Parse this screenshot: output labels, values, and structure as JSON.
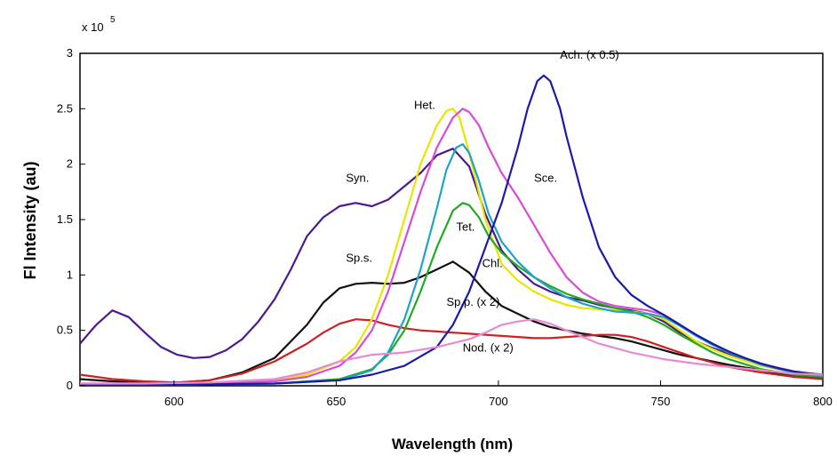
{
  "chart_data": {
    "type": "line",
    "xlabel": "Wavelength (nm)",
    "ylabel": "Fl Intensity (au)",
    "y_multiplier": "x 10",
    "y_exponent": "5",
    "xlim": [
      571,
      800
    ],
    "ylim": [
      0,
      3
    ],
    "x_ticks": [
      600,
      650,
      700,
      750,
      800
    ],
    "x_tick_labels": [
      "600",
      "650",
      "700",
      "750",
      "800"
    ],
    "y_ticks": [
      0,
      0.5,
      1,
      1.5,
      2,
      2.5,
      3
    ],
    "y_tick_labels": [
      "0",
      "0.5",
      "1",
      "1.5",
      "2",
      "2.5",
      "3"
    ],
    "grid": false,
    "series": [
      {
        "name": "Syn.",
        "color": "#4b1a8c",
        "x": [
          571,
          576,
          581,
          586,
          591,
          596,
          601,
          606,
          611,
          616,
          621,
          626,
          631,
          636,
          641,
          646,
          651,
          656,
          661,
          666,
          671,
          676,
          681,
          686,
          691,
          696,
          701,
          706,
          711,
          716,
          721,
          726,
          731,
          736,
          741,
          746,
          751,
          756,
          761,
          766,
          771,
          776,
          781,
          786,
          791,
          796,
          800
        ],
        "y": [
          0.38,
          0.55,
          0.68,
          0.62,
          0.48,
          0.35,
          0.28,
          0.25,
          0.26,
          0.32,
          0.42,
          0.58,
          0.78,
          1.05,
          1.35,
          1.52,
          1.62,
          1.65,
          1.62,
          1.68,
          1.8,
          1.92,
          2.08,
          2.14,
          1.98,
          1.55,
          1.22,
          1.05,
          0.92,
          0.85,
          0.8,
          0.77,
          0.73,
          0.7,
          0.68,
          0.65,
          0.58,
          0.48,
          0.4,
          0.34,
          0.29,
          0.24,
          0.2,
          0.16,
          0.13,
          0.11,
          0.1
        ]
      },
      {
        "name": "Sp.s.",
        "color": "#111111",
        "x": [
          571,
          581,
          591,
          601,
          611,
          621,
          631,
          641,
          646,
          651,
          656,
          661,
          666,
          671,
          676,
          681,
          686,
          691,
          696,
          701,
          706,
          711,
          716,
          721,
          726,
          731,
          736,
          741,
          746,
          751,
          756,
          761,
          766,
          771,
          781,
          791,
          800
        ],
        "y": [
          0.06,
          0.04,
          0.03,
          0.03,
          0.05,
          0.12,
          0.25,
          0.55,
          0.75,
          0.88,
          0.92,
          0.93,
          0.92,
          0.93,
          0.98,
          1.05,
          1.12,
          1.02,
          0.85,
          0.72,
          0.65,
          0.58,
          0.53,
          0.5,
          0.47,
          0.45,
          0.43,
          0.4,
          0.36,
          0.32,
          0.28,
          0.25,
          0.22,
          0.19,
          0.14,
          0.09,
          0.07
        ]
      },
      {
        "name": "Sp.p. (x 2)",
        "color": "#cc2222",
        "x": [
          571,
          581,
          591,
          601,
          611,
          621,
          631,
          641,
          646,
          651,
          656,
          661,
          666,
          671,
          676,
          681,
          686,
          691,
          696,
          701,
          706,
          711,
          716,
          721,
          726,
          731,
          736,
          741,
          746,
          751,
          756,
          761,
          766,
          771,
          781,
          791,
          800
        ],
        "y": [
          0.1,
          0.06,
          0.04,
          0.03,
          0.05,
          0.11,
          0.22,
          0.38,
          0.48,
          0.56,
          0.6,
          0.59,
          0.55,
          0.52,
          0.5,
          0.49,
          0.48,
          0.47,
          0.46,
          0.45,
          0.44,
          0.43,
          0.43,
          0.44,
          0.45,
          0.46,
          0.46,
          0.44,
          0.4,
          0.35,
          0.3,
          0.25,
          0.21,
          0.17,
          0.12,
          0.08,
          0.06
        ]
      },
      {
        "name": "Het.",
        "color": "#e6e600",
        "x": [
          571,
          591,
          611,
          631,
          641,
          651,
          656,
          661,
          666,
          671,
          676,
          681,
          684,
          686,
          688,
          691,
          696,
          701,
          706,
          711,
          716,
          721,
          726,
          731,
          736,
          741,
          746,
          751,
          756,
          761,
          766,
          771,
          781,
          791,
          800
        ],
        "y": [
          0.02,
          0.02,
          0.02,
          0.05,
          0.1,
          0.22,
          0.35,
          0.6,
          1.0,
          1.5,
          2.0,
          2.35,
          2.48,
          2.5,
          2.42,
          2.1,
          1.5,
          1.1,
          0.95,
          0.85,
          0.78,
          0.73,
          0.7,
          0.69,
          0.68,
          0.67,
          0.65,
          0.6,
          0.5,
          0.4,
          0.33,
          0.27,
          0.18,
          0.12,
          0.09
        ]
      },
      {
        "name": "",
        "color": "#d94ad9",
        "x": [
          571,
          591,
          611,
          631,
          641,
          651,
          656,
          661,
          666,
          671,
          676,
          681,
          686,
          689,
          691,
          694,
          697,
          701,
          706,
          711,
          716,
          721,
          726,
          731,
          736,
          741,
          746,
          751,
          756,
          761,
          766,
          771,
          781,
          791,
          800
        ],
        "y": [
          0.02,
          0.02,
          0.02,
          0.04,
          0.08,
          0.18,
          0.3,
          0.5,
          0.85,
          1.3,
          1.75,
          2.15,
          2.42,
          2.5,
          2.47,
          2.35,
          2.15,
          1.92,
          1.7,
          1.45,
          1.2,
          0.98,
          0.84,
          0.76,
          0.72,
          0.7,
          0.68,
          0.64,
          0.55,
          0.46,
          0.38,
          0.3,
          0.2,
          0.13,
          0.1
        ]
      },
      {
        "name": "Tet.",
        "color": "#22aa22",
        "x": [
          571,
          601,
          631,
          651,
          661,
          666,
          671,
          676,
          681,
          686,
          689,
          691,
          694,
          697,
          701,
          706,
          711,
          716,
          721,
          726,
          731,
          736,
          741,
          746,
          751,
          756,
          761,
          766,
          771,
          781,
          791,
          800
        ],
        "y": [
          0.01,
          0.01,
          0.02,
          0.06,
          0.15,
          0.28,
          0.5,
          0.85,
          1.25,
          1.58,
          1.65,
          1.63,
          1.52,
          1.35,
          1.2,
          1.08,
          0.98,
          0.9,
          0.83,
          0.78,
          0.74,
          0.7,
          0.67,
          0.62,
          0.55,
          0.46,
          0.38,
          0.3,
          0.24,
          0.15,
          0.1,
          0.08
        ]
      },
      {
        "name": "Chl.",
        "color": "#1fa3c4",
        "x": [
          571,
          601,
          631,
          651,
          661,
          666,
          671,
          676,
          681,
          684,
          687,
          689,
          691,
          694,
          697,
          701,
          706,
          711,
          716,
          721,
          726,
          731,
          736,
          741,
          746,
          751,
          756,
          761,
          766,
          771,
          781,
          791,
          800
        ],
        "y": [
          0.01,
          0.01,
          0.02,
          0.05,
          0.14,
          0.3,
          0.6,
          1.05,
          1.6,
          1.95,
          2.15,
          2.18,
          2.1,
          1.85,
          1.55,
          1.3,
          1.12,
          0.98,
          0.88,
          0.8,
          0.74,
          0.7,
          0.67,
          0.66,
          0.65,
          0.62,
          0.54,
          0.45,
          0.37,
          0.3,
          0.19,
          0.12,
          0.09
        ]
      },
      {
        "name": "Ach. (x 0.5)",
        "color": "#1a1aa8",
        "x": [
          571,
          601,
          631,
          651,
          661,
          671,
          681,
          686,
          691,
          696,
          701,
          706,
          709,
          712,
          714,
          716,
          719,
          721,
          726,
          731,
          736,
          741,
          746,
          751,
          756,
          761,
          766,
          771,
          776,
          781,
          786,
          791,
          796,
          800
        ],
        "y": [
          0.01,
          0.01,
          0.02,
          0.05,
          0.1,
          0.18,
          0.35,
          0.55,
          0.85,
          1.25,
          1.65,
          2.15,
          2.5,
          2.75,
          2.8,
          2.75,
          2.5,
          2.25,
          1.7,
          1.25,
          0.98,
          0.82,
          0.72,
          0.64,
          0.55,
          0.46,
          0.38,
          0.31,
          0.25,
          0.2,
          0.16,
          0.13,
          0.11,
          0.1
        ]
      },
      {
        "name": "Nod. (x 2)",
        "color": "#e68ad1",
        "x": [
          571,
          591,
          611,
          631,
          641,
          651,
          661,
          671,
          681,
          691,
          696,
          701,
          706,
          711,
          716,
          721,
          726,
          731,
          741,
          751,
          761,
          771,
          781,
          791,
          800
        ],
        "y": [
          0.02,
          0.02,
          0.03,
          0.06,
          0.12,
          0.22,
          0.28,
          0.3,
          0.35,
          0.42,
          0.48,
          0.55,
          0.58,
          0.6,
          0.56,
          0.5,
          0.44,
          0.38,
          0.3,
          0.24,
          0.2,
          0.17,
          0.14,
          0.11,
          0.1
        ]
      }
    ],
    "annotations": [
      {
        "text": "Ach. (x 0.5)",
        "x": 719,
        "y": 2.95
      },
      {
        "text": "Het.",
        "x": 674,
        "y": 2.5
      },
      {
        "text": "Syn.",
        "x": 653,
        "y": 1.84
      },
      {
        "text": "Sce.",
        "x": 711,
        "y": 1.84
      },
      {
        "text": "Tet.",
        "x": 687,
        "y": 1.4
      },
      {
        "text": "Sp.s.",
        "x": 653,
        "y": 1.12
      },
      {
        "text": "Chl.",
        "x": 695,
        "y": 1.07
      },
      {
        "text": "Sp.p. (x 2)",
        "x": 684,
        "y": 0.72
      },
      {
        "text": "Nod. (x 2)",
        "x": 689,
        "y": 0.31
      }
    ]
  }
}
